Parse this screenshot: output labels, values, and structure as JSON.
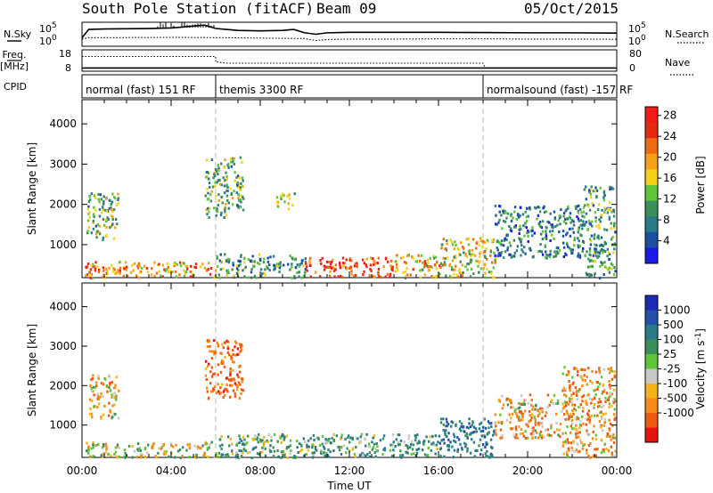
{
  "header": {
    "station": "South Pole Station (fitACF)",
    "beam": "Beam 09",
    "date": "05/Oct/2015"
  },
  "chart_data": [
    {
      "type": "line",
      "panel": "noise",
      "left_label": "N.Sky",
      "right_label": "N.Search",
      "left_ticks": [
        "10^5",
        "10^0"
      ],
      "right_ticks": [
        "10^5",
        "10^0"
      ],
      "series": [
        {
          "name": "N.Sky",
          "style": "solid",
          "x": [
            0,
            0.3,
            1,
            2,
            3,
            4,
            4.5,
            5,
            5.5,
            6,
            7,
            8,
            9,
            9.5,
            10,
            10.5,
            11,
            12,
            14,
            16,
            18,
            20,
            22,
            24
          ],
          "y": [
            0.35,
            0.7,
            0.72,
            0.73,
            0.74,
            0.76,
            0.8,
            0.84,
            0.88,
            0.74,
            0.66,
            0.64,
            0.66,
            0.7,
            0.56,
            0.5,
            0.56,
            0.58,
            0.58,
            0.58,
            0.57,
            0.56,
            0.56,
            0.55
          ]
        },
        {
          "name": "N.Search",
          "style": "dotted",
          "x": [
            0,
            0.3,
            2,
            4,
            6,
            8,
            10,
            10.5,
            11,
            12,
            14,
            16,
            18,
            20,
            22,
            24
          ],
          "y": [
            0.3,
            0.36,
            0.36,
            0.37,
            0.36,
            0.34,
            0.32,
            0.24,
            0.28,
            0.3,
            0.3,
            0.31,
            0.31,
            0.3,
            0.3,
            0.29
          ]
        }
      ]
    },
    {
      "type": "line",
      "panel": "freq",
      "left_label": "Freq. [MHz]",
      "right_label": "Nave",
      "left_ticks": [
        "18",
        "8"
      ],
      "right_ticks": [
        "80",
        "0"
      ],
      "series": [
        {
          "name": "Freq.",
          "style": "solid",
          "x": [
            0,
            24
          ],
          "y": [
            9.5,
            9.5
          ]
        },
        {
          "name": "Nave",
          "style": "dotted",
          "x": [
            0,
            6.0,
            6.0,
            6.5,
            18,
            18.1,
            24
          ],
          "y": [
            55,
            55,
            35,
            30,
            30,
            12,
            12
          ]
        }
      ]
    },
    {
      "type": "table",
      "panel": "cpid",
      "label": "CPID",
      "segments": [
        {
          "start": 0,
          "end": 6,
          "name": "normal (fast) 151 RF"
        },
        {
          "start": 6,
          "end": 18,
          "name": "themis 3300 RF"
        },
        {
          "start": 18,
          "end": 24,
          "name": "normalsound (fast) -157 RF"
        }
      ]
    },
    {
      "type": "heatmap",
      "panel": "power",
      "ylabel": "Slant Range [km]",
      "yticks": [
        1000,
        2000,
        3000,
        4000
      ],
      "ylim": [
        180,
        4600
      ],
      "xlim": [
        0,
        24
      ],
      "colorbar_label": "Power [dB]",
      "colorbar_ticks": [
        4,
        8,
        12,
        16,
        20,
        24,
        28
      ],
      "colors": [
        "#1a1ae6",
        "#1d4fa0",
        "#2a7a88",
        "#3c8f5a",
        "#62c43a",
        "#f2d21b",
        "#f5a21a",
        "#ef6b12",
        "#e52a12",
        "#f51a1a"
      ],
      "regions": [
        {
          "t0": 0.0,
          "t1": 6.0,
          "r0": 200,
          "r1": 600,
          "value": 20
        },
        {
          "t0": 0.2,
          "t1": 1.6,
          "r0": 1100,
          "r1": 2300,
          "value": 12
        },
        {
          "t0": 5.5,
          "t1": 7.2,
          "r0": 1700,
          "r1": 3200,
          "value": 12
        },
        {
          "t0": 6.0,
          "t1": 10.0,
          "r0": 200,
          "r1": 800,
          "value": 10
        },
        {
          "t0": 8.7,
          "t1": 9.5,
          "r0": 1900,
          "r1": 2300,
          "value": 14
        },
        {
          "t0": 10.0,
          "t1": 14.0,
          "r0": 200,
          "r1": 700,
          "value": 26
        },
        {
          "t0": 14.0,
          "t1": 16.0,
          "r0": 200,
          "r1": 800,
          "value": 18
        },
        {
          "t0": 16.0,
          "t1": 18.5,
          "r0": 200,
          "r1": 1200,
          "value": 16
        },
        {
          "t0": 18.5,
          "t1": 22.5,
          "r0": 700,
          "r1": 2000,
          "value": 8
        },
        {
          "t0": 22.5,
          "t1": 23.9,
          "r0": 200,
          "r1": 2500,
          "value": 10
        }
      ]
    },
    {
      "type": "heatmap",
      "panel": "velocity",
      "ylabel": "Slant Range [km]",
      "yticks": [
        1000,
        2000,
        3000,
        4000
      ],
      "ylim": [
        180,
        4600
      ],
      "xlim": [
        0,
        24
      ],
      "xlabel": "Time UT",
      "xticks": [
        "00:00",
        "04:00",
        "08:00",
        "12:00",
        "16:00",
        "20:00",
        "00:00"
      ],
      "colorbar_label": "Velocity [m s^-1]",
      "colorbar_ticks": [
        1000,
        500,
        100,
        25,
        -25,
        -100,
        -500,
        -1000
      ],
      "colors": [
        "#1d2ab8",
        "#2550a8",
        "#2a7a88",
        "#3c8f5a",
        "#62c43a",
        "#c8c8c8",
        "#f5b31a",
        "#f58a1a",
        "#ef5a12",
        "#e5140f"
      ],
      "regions": [
        {
          "t0": 0.0,
          "t1": 6.0,
          "r0": 200,
          "r1": 600,
          "value": 0
        },
        {
          "t0": 0.3,
          "t1": 1.6,
          "r0": 1200,
          "r1": 2300,
          "value": -100
        },
        {
          "t0": 5.5,
          "t1": 7.2,
          "r0": 1700,
          "r1": 3200,
          "value": -300
        },
        {
          "t0": 6.0,
          "t1": 10.0,
          "r0": 200,
          "r1": 800,
          "value": 150
        },
        {
          "t0": 10.0,
          "t1": 16.0,
          "r0": 200,
          "r1": 800,
          "value": 200
        },
        {
          "t0": 16.0,
          "t1": 18.5,
          "r0": 200,
          "r1": 1200,
          "value": 400
        },
        {
          "t0": 18.5,
          "t1": 21.5,
          "r0": 700,
          "r1": 1800,
          "value": -120
        },
        {
          "t0": 21.5,
          "t1": 23.9,
          "r0": 200,
          "r1": 2500,
          "value": -150
        }
      ]
    }
  ]
}
